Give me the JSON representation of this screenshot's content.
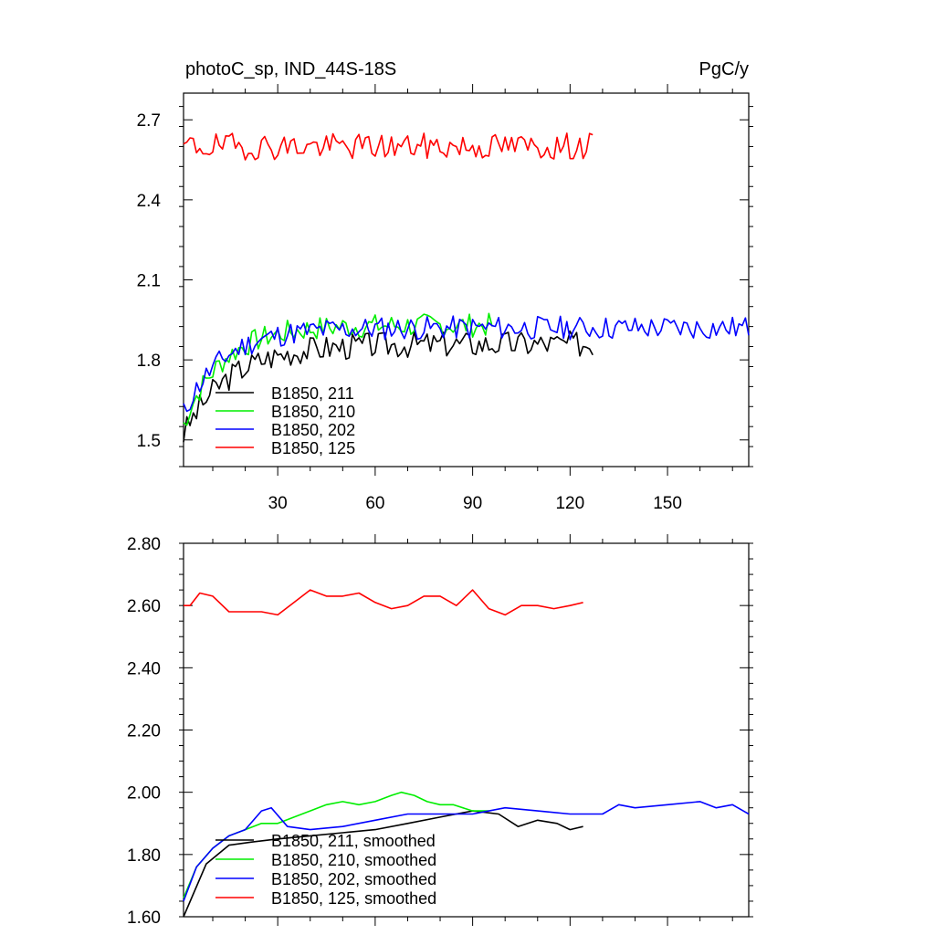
{
  "chart_data": [
    {
      "type": "line",
      "title": "photoC_sp, IND_44S-18S",
      "units": "PgC/y",
      "xlim": [
        1,
        175
      ],
      "ylim": [
        1.4,
        2.8
      ],
      "yticks": [
        "1.5",
        "1.8",
        "2.1",
        "2.4",
        "2.7"
      ],
      "xticks": [
        "30",
        "60",
        "90",
        "120",
        "150"
      ],
      "legend_position": "bottom-left",
      "series": [
        {
          "name": "B1850, 211",
          "color": "#000000",
          "length": 127,
          "base": 1.86,
          "noise": 0.05,
          "start": 1.52,
          "rise": 14,
          "seed": 3
        },
        {
          "name": "B1850, 210",
          "color": "#00ee00",
          "length": 96,
          "base": 1.93,
          "noise": 0.045,
          "start": 1.56,
          "rise": 12,
          "seed": 7
        },
        {
          "name": "B1850, 202",
          "color": "#0000ff",
          "length": 175,
          "base": 1.92,
          "noise": 0.045,
          "start": 1.6,
          "rise": 12,
          "seed": 11
        },
        {
          "name": "B1850, 125",
          "color": "#ff0000",
          "length": 127,
          "base": 2.6,
          "noise": 0.05,
          "start": 2.6,
          "rise": 0,
          "seed": 19
        }
      ]
    },
    {
      "type": "line",
      "xlim": [
        1,
        175
      ],
      "ylim": [
        1.6,
        2.8
      ],
      "yticks": [
        "1.60",
        "1.80",
        "2.00",
        "2.20",
        "2.40",
        "2.60",
        "2.80"
      ],
      "legend_position": "bottom-left",
      "series": [
        {
          "name": "B1850, 211, smoothed",
          "color": "#000000",
          "x": [
            1,
            8,
            15,
            22,
            30,
            40,
            50,
            60,
            70,
            80,
            90,
            98,
            104,
            110,
            116,
            120,
            124
          ],
          "y": [
            1.6,
            1.77,
            1.83,
            1.84,
            1.85,
            1.86,
            1.87,
            1.88,
            1.9,
            1.92,
            1.94,
            1.93,
            1.89,
            1.91,
            1.9,
            1.88,
            1.89
          ]
        },
        {
          "name": "B1850, 210, smoothed",
          "color": "#00ee00",
          "x": [
            1,
            5,
            10,
            15,
            20,
            25,
            30,
            35,
            40,
            45,
            50,
            55,
            60,
            65,
            68,
            72,
            76,
            80,
            84,
            90,
            95
          ],
          "y": [
            1.66,
            1.76,
            1.82,
            1.86,
            1.88,
            1.9,
            1.9,
            1.92,
            1.94,
            1.96,
            1.97,
            1.96,
            1.97,
            1.99,
            2.0,
            1.99,
            1.97,
            1.96,
            1.96,
            1.94,
            1.94
          ]
        },
        {
          "name": "B1850, 202, smoothed",
          "color": "#0000ff",
          "x": [
            1,
            5,
            10,
            15,
            20,
            25,
            28,
            33,
            40,
            50,
            60,
            70,
            80,
            90,
            100,
            110,
            120,
            130,
            135,
            140,
            150,
            160,
            165,
            170,
            175
          ],
          "y": [
            1.65,
            1.76,
            1.82,
            1.86,
            1.88,
            1.94,
            1.95,
            1.89,
            1.88,
            1.89,
            1.91,
            1.93,
            1.93,
            1.93,
            1.95,
            1.94,
            1.93,
            1.93,
            1.96,
            1.95,
            1.96,
            1.97,
            1.95,
            1.96,
            1.93
          ]
        },
        {
          "name": "B1850, 125, smoothed",
          "color": "#ff0000",
          "x": [
            1,
            3,
            6,
            10,
            15,
            20,
            25,
            30,
            35,
            40,
            45,
            50,
            55,
            60,
            65,
            70,
            75,
            80,
            85,
            90,
            95,
            100,
            105,
            110,
            115,
            120,
            124
          ],
          "y": [
            2.6,
            2.6,
            2.64,
            2.63,
            2.58,
            2.58,
            2.58,
            2.57,
            2.61,
            2.65,
            2.63,
            2.63,
            2.64,
            2.61,
            2.59,
            2.6,
            2.63,
            2.63,
            2.6,
            2.65,
            2.59,
            2.57,
            2.6,
            2.6,
            2.59,
            2.6,
            2.61
          ]
        }
      ]
    }
  ]
}
